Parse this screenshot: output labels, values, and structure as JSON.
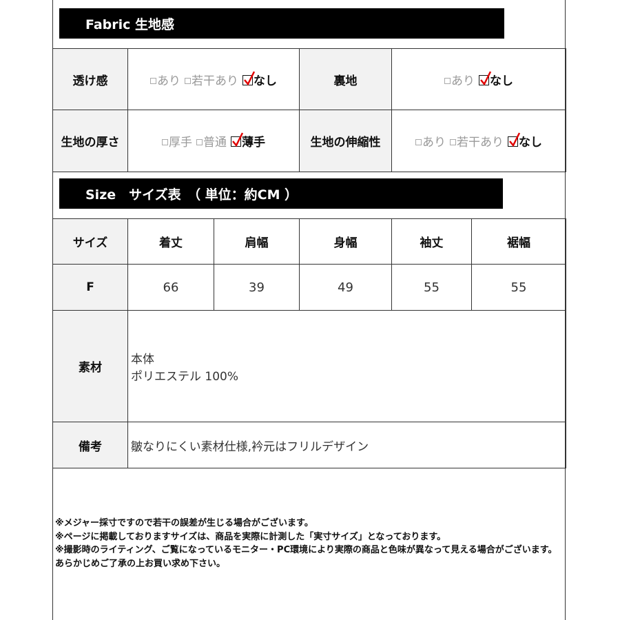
{
  "fabric": {
    "title": "Fabric 生地感",
    "rows": [
      [
        {
          "label": "透け感",
          "options": [
            {
              "text": "あり",
              "checked": false
            },
            {
              "text": "若干あり",
              "checked": false
            },
            {
              "text": "なし",
              "checked": true
            }
          ]
        },
        {
          "label": "裏地",
          "options": [
            {
              "text": "あり",
              "checked": false
            },
            {
              "text": "なし",
              "checked": true
            }
          ]
        }
      ],
      [
        {
          "label": "生地の厚さ",
          "options": [
            {
              "text": "厚手",
              "checked": false
            },
            {
              "text": "普通",
              "checked": false
            },
            {
              "text": "薄手",
              "checked": true
            }
          ]
        },
        {
          "label": "生地の伸縮性",
          "options": [
            {
              "text": "あり",
              "checked": false
            },
            {
              "text": "若干あり",
              "checked": false
            },
            {
              "text": "なし",
              "checked": true
            }
          ]
        }
      ]
    ]
  },
  "size": {
    "title": "Size　サイズ表　（ 単位：約CM ）",
    "headers": [
      "サイズ",
      "着丈",
      "肩幅",
      "身幅",
      "袖丈",
      "裾幅"
    ],
    "row": [
      "F",
      "66",
      "39",
      "49",
      "55",
      "55"
    ],
    "material_label": "素材",
    "material_lines": [
      "本体",
      "ポリエステル 100%"
    ],
    "remarks_label": "備考",
    "remarks": "皺なりにくい素材仕様,衿元はフリルデザイン"
  },
  "notes": [
    "※メジャー採寸ですので若干の誤差が生じる場合がございます。",
    "※ページに掲載しておりますサイズは、商品を実際に計測した「実寸サイズ」となっております。",
    "※撮影時のライティング、ご覧になっているモニター・PC環境により実際の商品と色味が異なって見える場合がございます。あらかじめご了承の上お買い求め下さい。"
  ],
  "colors": {
    "check": "#e00000",
    "label_bg": "#f2f2f2",
    "bar": "#000000"
  }
}
